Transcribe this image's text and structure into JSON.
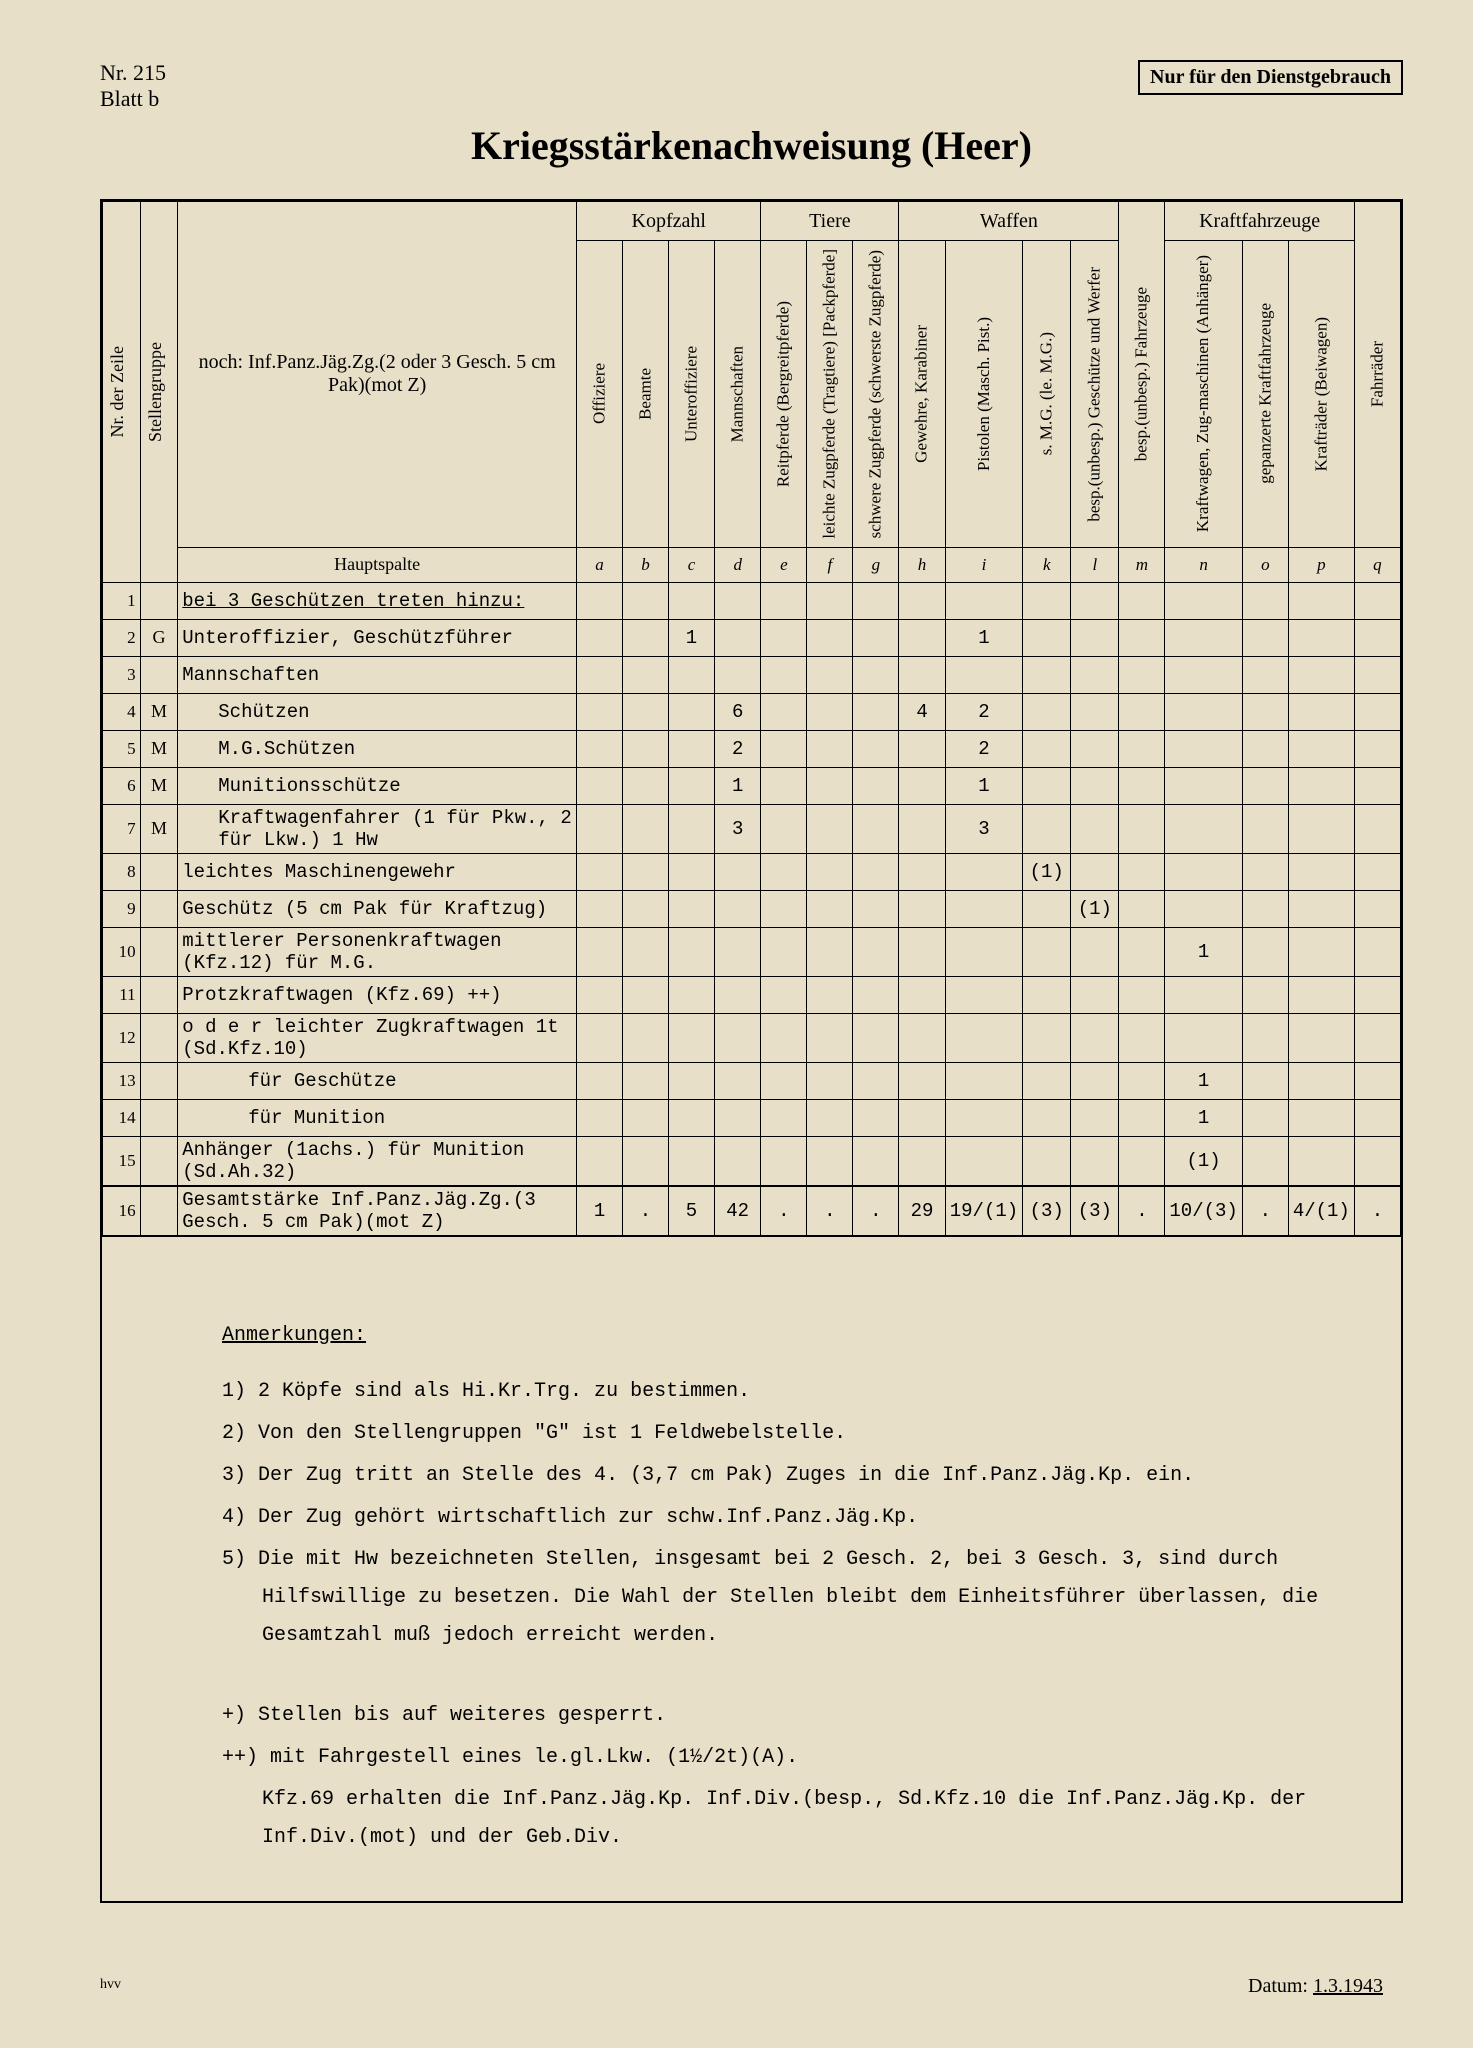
{
  "meta": {
    "nr_label": "Nr.",
    "nr_value": "215",
    "blatt": "Blatt b",
    "classification": "Nur für den Dienstgebrauch",
    "title": "Kriegsstärkenachweisung (Heer)",
    "datum_label": "Datum:",
    "datum_value": "1.3.1943",
    "hvv": "hvv"
  },
  "headers": {
    "nr_zeile": "Nr. der Zeile",
    "stellengruppe": "Stellengruppe",
    "description": "noch: Inf.Panz.Jäg.Zg.(2 oder 3 Gesch. 5 cm Pak)(mot Z)",
    "groups": {
      "kopfzahl": "Kopfzahl",
      "tiere": "Tiere",
      "waffen": "Waffen",
      "kraftfahrzeuge": "Kraftfahrzeuge"
    },
    "cols": [
      "Offiziere",
      "Beamte",
      "Unteroffiziere",
      "Mannschaften",
      "Reitpferde (Bergreitpferde)",
      "leichte Zugpferde (Tragtiere) [Packpferde]",
      "schwere Zugpferde (schwerste Zugpferde)",
      "Gewehre, Karabiner",
      "Pistolen (Masch. Pist.)",
      "s. M.G. (le. M.G.)",
      "besp.(unbesp.) Geschütze und Werfer",
      "besp.(unbesp.) Fahrzeuge",
      "Kraftwagen, Zug-maschinen (Anhänger)",
      "gepanzerte Kraftfahrzeuge",
      "Krafträder (Beiwagen)",
      "Fahrräder"
    ],
    "hauptspalte": "Hauptspalte",
    "letters": [
      "a",
      "b",
      "c",
      "d",
      "e",
      "f",
      "g",
      "h",
      "i",
      "k",
      "l",
      "m",
      "n",
      "o",
      "p",
      "q"
    ]
  },
  "rows": [
    {
      "n": "1",
      "sg": "",
      "desc": "bei 3 Geschützen treten hinzu:",
      "underline": true,
      "indent": 0,
      "v": [
        "",
        "",
        "",
        "",
        "",
        "",
        "",
        "",
        "",
        "",
        "",
        "",
        "",
        "",
        "",
        ""
      ]
    },
    {
      "n": "2",
      "sg": "G",
      "desc": "Unteroffizier, Geschützführer",
      "indent": 0,
      "v": [
        "",
        "",
        "1",
        "",
        "",
        "",
        "",
        "",
        "1",
        "",
        "",
        "",
        "",
        "",
        "",
        ""
      ]
    },
    {
      "n": "3",
      "sg": "",
      "desc": "Mannschaften",
      "indent": 0,
      "v": [
        "",
        "",
        "",
        "",
        "",
        "",
        "",
        "",
        "",
        "",
        "",
        "",
        "",
        "",
        "",
        ""
      ]
    },
    {
      "n": "4",
      "sg": "M",
      "desc": "Schützen",
      "indent": 1,
      "v": [
        "",
        "",
        "",
        "6",
        "",
        "",
        "",
        "4",
        "2",
        "",
        "",
        "",
        "",
        "",
        "",
        ""
      ]
    },
    {
      "n": "5",
      "sg": "M",
      "desc": "M.G.Schützen",
      "indent": 1,
      "v": [
        "",
        "",
        "",
        "2",
        "",
        "",
        "",
        "",
        "2",
        "",
        "",
        "",
        "",
        "",
        "",
        ""
      ]
    },
    {
      "n": "6",
      "sg": "M",
      "desc": "Munitionsschütze",
      "indent": 1,
      "v": [
        "",
        "",
        "",
        "1",
        "",
        "",
        "",
        "",
        "1",
        "",
        "",
        "",
        "",
        "",
        "",
        ""
      ]
    },
    {
      "n": "7",
      "sg": "M",
      "desc": "Kraftwagenfahrer (1 für Pkw., 2 für Lkw.)  1 Hw",
      "indent": 1,
      "v": [
        "",
        "",
        "",
        "3",
        "",
        "",
        "",
        "",
        "3",
        "",
        "",
        "",
        "",
        "",
        "",
        ""
      ]
    },
    {
      "n": "8",
      "sg": "",
      "desc": "leichtes Maschinengewehr",
      "indent": 0,
      "v": [
        "",
        "",
        "",
        "",
        "",
        "",
        "",
        "",
        "",
        "(1)",
        "",
        "",
        "",
        "",
        "",
        ""
      ]
    },
    {
      "n": "9",
      "sg": "",
      "desc": "Geschütz (5 cm Pak für Kraftzug)",
      "indent": 0,
      "v": [
        "",
        "",
        "",
        "",
        "",
        "",
        "",
        "",
        "",
        "",
        "(1)",
        "",
        "",
        "",
        "",
        ""
      ]
    },
    {
      "n": "10",
      "sg": "",
      "desc": "mittlerer Personenkraftwagen (Kfz.12) für M.G.",
      "indent": 0,
      "v": [
        "",
        "",
        "",
        "",
        "",
        "",
        "",
        "",
        "",
        "",
        "",
        "",
        "1",
        "",
        "",
        ""
      ]
    },
    {
      "n": "11",
      "sg": "",
      "desc": "Protzkraftwagen (Kfz.69)          ++)",
      "indent": 0,
      "v": [
        "",
        "",
        "",
        "",
        "",
        "",
        "",
        "",
        "",
        "",
        "",
        "",
        "",
        "",
        "",
        ""
      ]
    },
    {
      "n": "12",
      "sg": "",
      "desc": "o d e r  leichter Zugkraftwagen 1t (Sd.Kfz.10)",
      "indent": 0,
      "v": [
        "",
        "",
        "",
        "",
        "",
        "",
        "",
        "",
        "",
        "",
        "",
        "",
        "",
        "",
        "",
        ""
      ]
    },
    {
      "n": "13",
      "sg": "",
      "desc": "für Geschütze",
      "indent": 2,
      "v": [
        "",
        "",
        "",
        "",
        "",
        "",
        "",
        "",
        "",
        "",
        "",
        "",
        "1",
        "",
        "",
        ""
      ]
    },
    {
      "n": "14",
      "sg": "",
      "desc": "für Munition",
      "indent": 2,
      "v": [
        "",
        "",
        "",
        "",
        "",
        "",
        "",
        "",
        "",
        "",
        "",
        "",
        "1",
        "",
        "",
        ""
      ]
    },
    {
      "n": "15",
      "sg": "",
      "desc": "Anhänger (1achs.) für Munition (Sd.Ah.32)",
      "indent": 0,
      "v": [
        "",
        "",
        "",
        "",
        "",
        "",
        "",
        "",
        "",
        "",
        "",
        "",
        "(1)",
        "",
        "",
        ""
      ]
    },
    {
      "n": "16",
      "sg": "",
      "desc": "Gesamtstärke Inf.Panz.Jäg.Zg.(3 Gesch. 5 cm Pak)(mot Z)",
      "indent": 0,
      "total": true,
      "v": [
        "1",
        ".",
        "5",
        "42",
        ".",
        ".",
        ".",
        "29",
        "19/(1)",
        "(3)",
        "(3)",
        ".",
        "10/(3)",
        ".",
        "4/(1)",
        "."
      ]
    }
  ],
  "notes": {
    "heading": "Anmerkungen:",
    "items": [
      "1) 2 Köpfe sind als Hi.Kr.Trg. zu bestimmen.",
      "2) Von den Stellengruppen \"G\" ist 1 Feldwebelstelle.",
      "3) Der Zug tritt an Stelle des 4. (3,7 cm Pak) Zuges in die Inf.Panz.Jäg.Kp. ein.",
      "4) Der Zug gehört wirtschaftlich zur schw.Inf.Panz.Jäg.Kp.",
      "5) Die mit Hw bezeichneten Stellen, insgesamt bei 2 Gesch. 2, bei 3 Gesch. 3, sind durch Hilfswillige zu besetzen. Die Wahl der Stellen bleibt dem Einheitsführer überlassen, die Gesamtzahl muß jedoch erreicht werden."
    ],
    "plus_items": [
      "+) Stellen bis auf weiteres gesperrt.",
      "++) mit Fahrgestell eines le.gl.Lkw. (1½/2t)(A).",
      "Kfz.69 erhalten die Inf.Panz.Jäg.Kp. Inf.Div.(besp., Sd.Kfz.10 die Inf.Panz.Jäg.Kp. der Inf.Div.(mot) und der Geb.Div."
    ]
  }
}
